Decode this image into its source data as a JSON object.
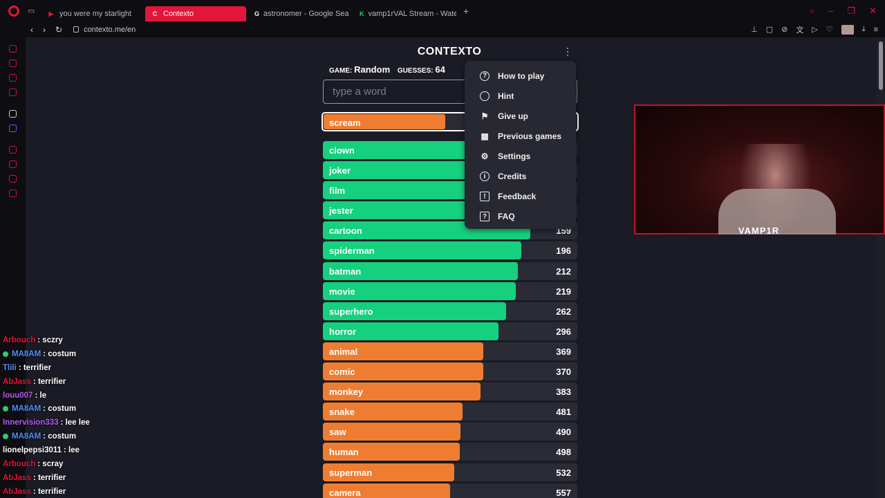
{
  "tabs": [
    {
      "label": "you were my starlight",
      "fav_color": "#e2163a",
      "fav_glyph": "▶"
    },
    {
      "label": "Contexto",
      "fav_color": "#fff",
      "fav_glyph": "C"
    },
    {
      "label": "astronomer - Google Sea",
      "fav_color": "#fff",
      "fav_glyph": "G"
    },
    {
      "label": "vamp1rVAL Stream - Wate",
      "fav_color": "#2ecc71",
      "fav_glyph": "K"
    }
  ],
  "address": {
    "url": "contexto.me/en"
  },
  "page": {
    "title": "CONTEXTO",
    "game_label": "GAME:",
    "game_value": "Random",
    "guesses_label": "GUESSES:",
    "guesses_value": "64",
    "input_placeholder": "type a word"
  },
  "highlighted": {
    "word": "scream",
    "fill_fraction": 0.48,
    "color": "#ef7d31"
  },
  "guesses": [
    {
      "word": "clown",
      "dist": "",
      "fill": 0.75,
      "color": "#15d07f"
    },
    {
      "word": "joker",
      "dist": "",
      "fill": 0.75,
      "color": "#15d07f"
    },
    {
      "word": "film",
      "dist": "",
      "fill": 0.75,
      "color": "#15d07f"
    },
    {
      "word": "jester",
      "dist": "",
      "fill": 0.75,
      "color": "#15d07f"
    },
    {
      "word": "cartoon",
      "dist": "159",
      "fill": 0.815,
      "color": "#15d07f"
    },
    {
      "word": "spiderman",
      "dist": "196",
      "fill": 0.78,
      "color": "#15d07f"
    },
    {
      "word": "batman",
      "dist": "212",
      "fill": 0.765,
      "color": "#15d07f"
    },
    {
      "word": "movie",
      "dist": "219",
      "fill": 0.758,
      "color": "#15d07f"
    },
    {
      "word": "superhero",
      "dist": "262",
      "fill": 0.72,
      "color": "#15d07f"
    },
    {
      "word": "horror",
      "dist": "296",
      "fill": 0.69,
      "color": "#15d07f"
    },
    {
      "word": "animal",
      "dist": "369",
      "fill": 0.63,
      "color": "#ef7d31"
    },
    {
      "word": "comic",
      "dist": "370",
      "fill": 0.63,
      "color": "#ef7d31"
    },
    {
      "word": "monkey",
      "dist": "383",
      "fill": 0.62,
      "color": "#ef7d31"
    },
    {
      "word": "snake",
      "dist": "481",
      "fill": 0.55,
      "color": "#ef7d31"
    },
    {
      "word": "saw",
      "dist": "490",
      "fill": 0.542,
      "color": "#ef7d31"
    },
    {
      "word": "human",
      "dist": "498",
      "fill": 0.537,
      "color": "#ef7d31"
    },
    {
      "word": "superman",
      "dist": "532",
      "fill": 0.515,
      "color": "#ef7d31"
    },
    {
      "word": "camera",
      "dist": "557",
      "fill": 0.5,
      "color": "#ef7d31"
    }
  ],
  "menu": [
    {
      "label": "How to play",
      "icon": "question-circle-icon",
      "glyph": "?",
      "shape": "circle"
    },
    {
      "label": "Hint",
      "icon": "lightbulb-icon",
      "glyph": "",
      "shape": "circle"
    },
    {
      "label": "Give up",
      "icon": "flag-icon",
      "glyph": "⚑",
      "shape": "none"
    },
    {
      "label": "Previous games",
      "icon": "calendar-icon",
      "glyph": "▦",
      "shape": "none"
    },
    {
      "label": "Settings",
      "icon": "gear-icon",
      "glyph": "⚙",
      "shape": "none"
    },
    {
      "label": "Credits",
      "icon": "info-circle-icon",
      "glyph": "i",
      "shape": "circle"
    },
    {
      "label": "Feedback",
      "icon": "feedback-icon",
      "glyph": "!",
      "shape": "square"
    },
    {
      "label": "FAQ",
      "icon": "faq-icon",
      "glyph": "?",
      "shape": "square"
    }
  ],
  "webcam": {
    "label": "VAMP1R"
  },
  "chat": [
    {
      "user": "Arbouch",
      "color": "#e2163a",
      "badge": false,
      "msg": ": sczry"
    },
    {
      "user": "MA8AM",
      "color": "#4f8ef7",
      "badge": true,
      "msg": ": costum"
    },
    {
      "user": "Tlili",
      "color": "#4f8ef7",
      "badge": false,
      "msg": ": terrifier"
    },
    {
      "user": "AbJass",
      "color": "#e2163a",
      "badge": false,
      "msg": ": terrifier"
    },
    {
      "user": "louu007",
      "color": "#b45cf0",
      "badge": false,
      "msg": ": le"
    },
    {
      "user": "MA8AM",
      "color": "#4f8ef7",
      "badge": true,
      "msg": ": costum"
    },
    {
      "user": "Innervision333",
      "color": "#b45cf0",
      "badge": false,
      "msg": ": lee lee"
    },
    {
      "user": "MA8AM",
      "color": "#4f8ef7",
      "badge": true,
      "msg": ": costum"
    },
    {
      "user": "lionelpepsi3011",
      "color": "#ffffff",
      "badge": false,
      "msg": ": lee"
    },
    {
      "user": "Arbouch",
      "color": "#e2163a",
      "badge": false,
      "msg": ": scray"
    },
    {
      "user": "AbJass",
      "color": "#e2163a",
      "badge": false,
      "msg": ": terrifier"
    },
    {
      "user": "AbJass",
      "color": "#e2163a",
      "badge": false,
      "msg": ": terrifier"
    }
  ]
}
